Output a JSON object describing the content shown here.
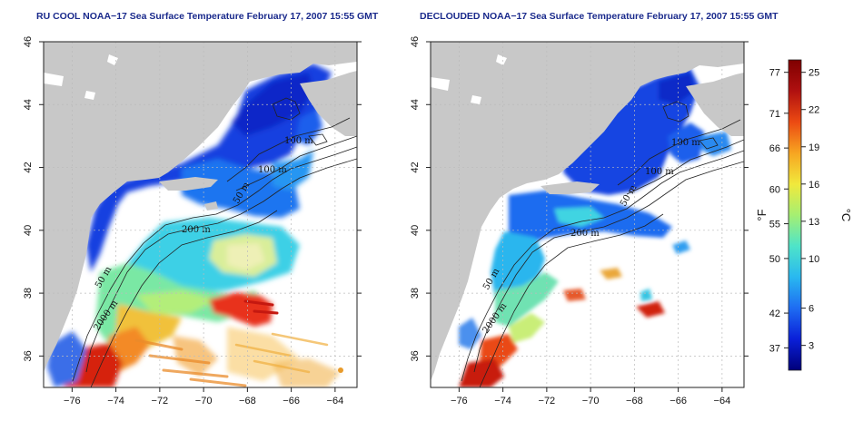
{
  "panels": [
    {
      "title": "RU COOL NOAA−17 Sea Surface Temperature February 17, 2007 15:55 GMT",
      "contour_labels": [
        "100 m",
        "100 m",
        "200 m",
        "2000 m",
        "50 m",
        "50 m"
      ],
      "coverage": "full"
    },
    {
      "title": "DECLOUDED NOAA−17 Sea Surface Temperature February 17, 2007 15:55 GMT",
      "contour_labels": [
        "100 m",
        "100 m",
        "200 m",
        "2000 m",
        "50 m",
        "50 m"
      ],
      "coverage": "declouded"
    }
  ],
  "axes": {
    "x_ticks": [
      "−76",
      "−74",
      "−72",
      "−70",
      "−68",
      "−66",
      "−64"
    ],
    "y_ticks": [
      "36",
      "38",
      "40",
      "42",
      "44",
      "46"
    ]
  },
  "colorbar": {
    "f_label": "°F",
    "c_label": "°C",
    "f_ticks": [
      {
        "label": "77",
        "value": 25
      },
      {
        "label": "71",
        "value": 21.7
      },
      {
        "label": "66",
        "value": 18.9
      },
      {
        "label": "60",
        "value": 15.6
      },
      {
        "label": "55",
        "value": 12.8
      },
      {
        "label": "50",
        "value": 10
      },
      {
        "label": "42",
        "value": 5.6
      },
      {
        "label": "37",
        "value": 2.8
      }
    ],
    "c_ticks": [
      {
        "label": "25",
        "value": 25
      },
      {
        "label": "22",
        "value": 22
      },
      {
        "label": "19",
        "value": 19
      },
      {
        "label": "16",
        "value": 16
      },
      {
        "label": "13",
        "value": 13
      },
      {
        "label": "10",
        "value": 10
      },
      {
        "label": "6",
        "value": 6
      },
      {
        "label": "3",
        "value": 3
      }
    ],
    "range_c": [
      1,
      26
    ],
    "colors": [
      "#00007a",
      "#0a1fd8",
      "#1e6cf2",
      "#29b8f0",
      "#4ee4c9",
      "#a5ef72",
      "#f1e93c",
      "#f7a521",
      "#ec4a12",
      "#b01010",
      "#7f0000"
    ]
  },
  "map_colors": {
    "land": "#c8c8c8",
    "grid": "#bbbbbb"
  }
}
